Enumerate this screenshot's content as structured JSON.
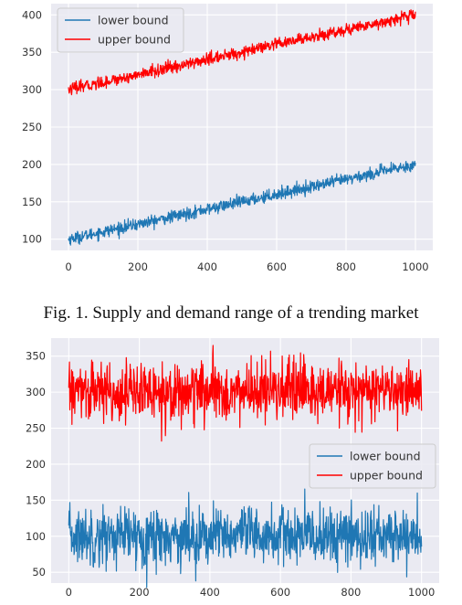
{
  "caption": "Fig. 1.  Supply and demand range of a trending market",
  "colors": {
    "lower": "#1f77b4",
    "upper": "#ff0000",
    "plot_bg": "#eaeaf2",
    "grid": "#ffffff"
  },
  "chart_data": [
    {
      "type": "line",
      "title": "",
      "xlabel": "",
      "ylabel": "",
      "xlim": [
        -50,
        1050
      ],
      "ylim": [
        85,
        415
      ],
      "grid": true,
      "legend_placement": "top-left",
      "xticks": [
        0,
        200,
        400,
        600,
        800,
        1000
      ],
      "xtick_labels": [
        "0",
        "200",
        "400",
        "600",
        "800",
        "1000"
      ],
      "yticks": [
        100,
        150,
        200,
        250,
        300,
        350,
        400
      ],
      "ytick_labels": [
        "100",
        "150",
        "200",
        "250",
        "300",
        "350",
        "400"
      ],
      "series": [
        {
          "name": "lower bound",
          "color": "#1f77b4",
          "x": [
            0,
            1000
          ],
          "y": [
            100,
            200
          ],
          "noise_sd": 4
        },
        {
          "name": "upper bound",
          "color": "#ff0000",
          "x": [
            0,
            1000
          ],
          "y": [
            300,
            400
          ],
          "noise_sd": 4
        }
      ]
    },
    {
      "type": "line",
      "title": "",
      "xlabel": "",
      "ylabel": "",
      "xlim": [
        -50,
        1050
      ],
      "ylim": [
        35,
        375
      ],
      "grid": true,
      "legend_placement": "center-right",
      "xticks": [
        0,
        200,
        400,
        600,
        800,
        1000
      ],
      "xtick_labels": [
        "0",
        "200",
        "400",
        "600",
        "800",
        "1000"
      ],
      "yticks": [
        50,
        100,
        150,
        200,
        250,
        300,
        350
      ],
      "ytick_labels": [
        "50",
        "100",
        "150",
        "200",
        "250",
        "300",
        "350"
      ],
      "series": [
        {
          "name": "lower bound",
          "color": "#1f77b4",
          "x": [
            0,
            1000
          ],
          "y": [
            100,
            100
          ],
          "noise_sd": 20
        },
        {
          "name": "upper bound",
          "color": "#ff0000",
          "x": [
            0,
            1000
          ],
          "y": [
            300,
            300
          ],
          "noise_sd": 20
        }
      ]
    }
  ]
}
